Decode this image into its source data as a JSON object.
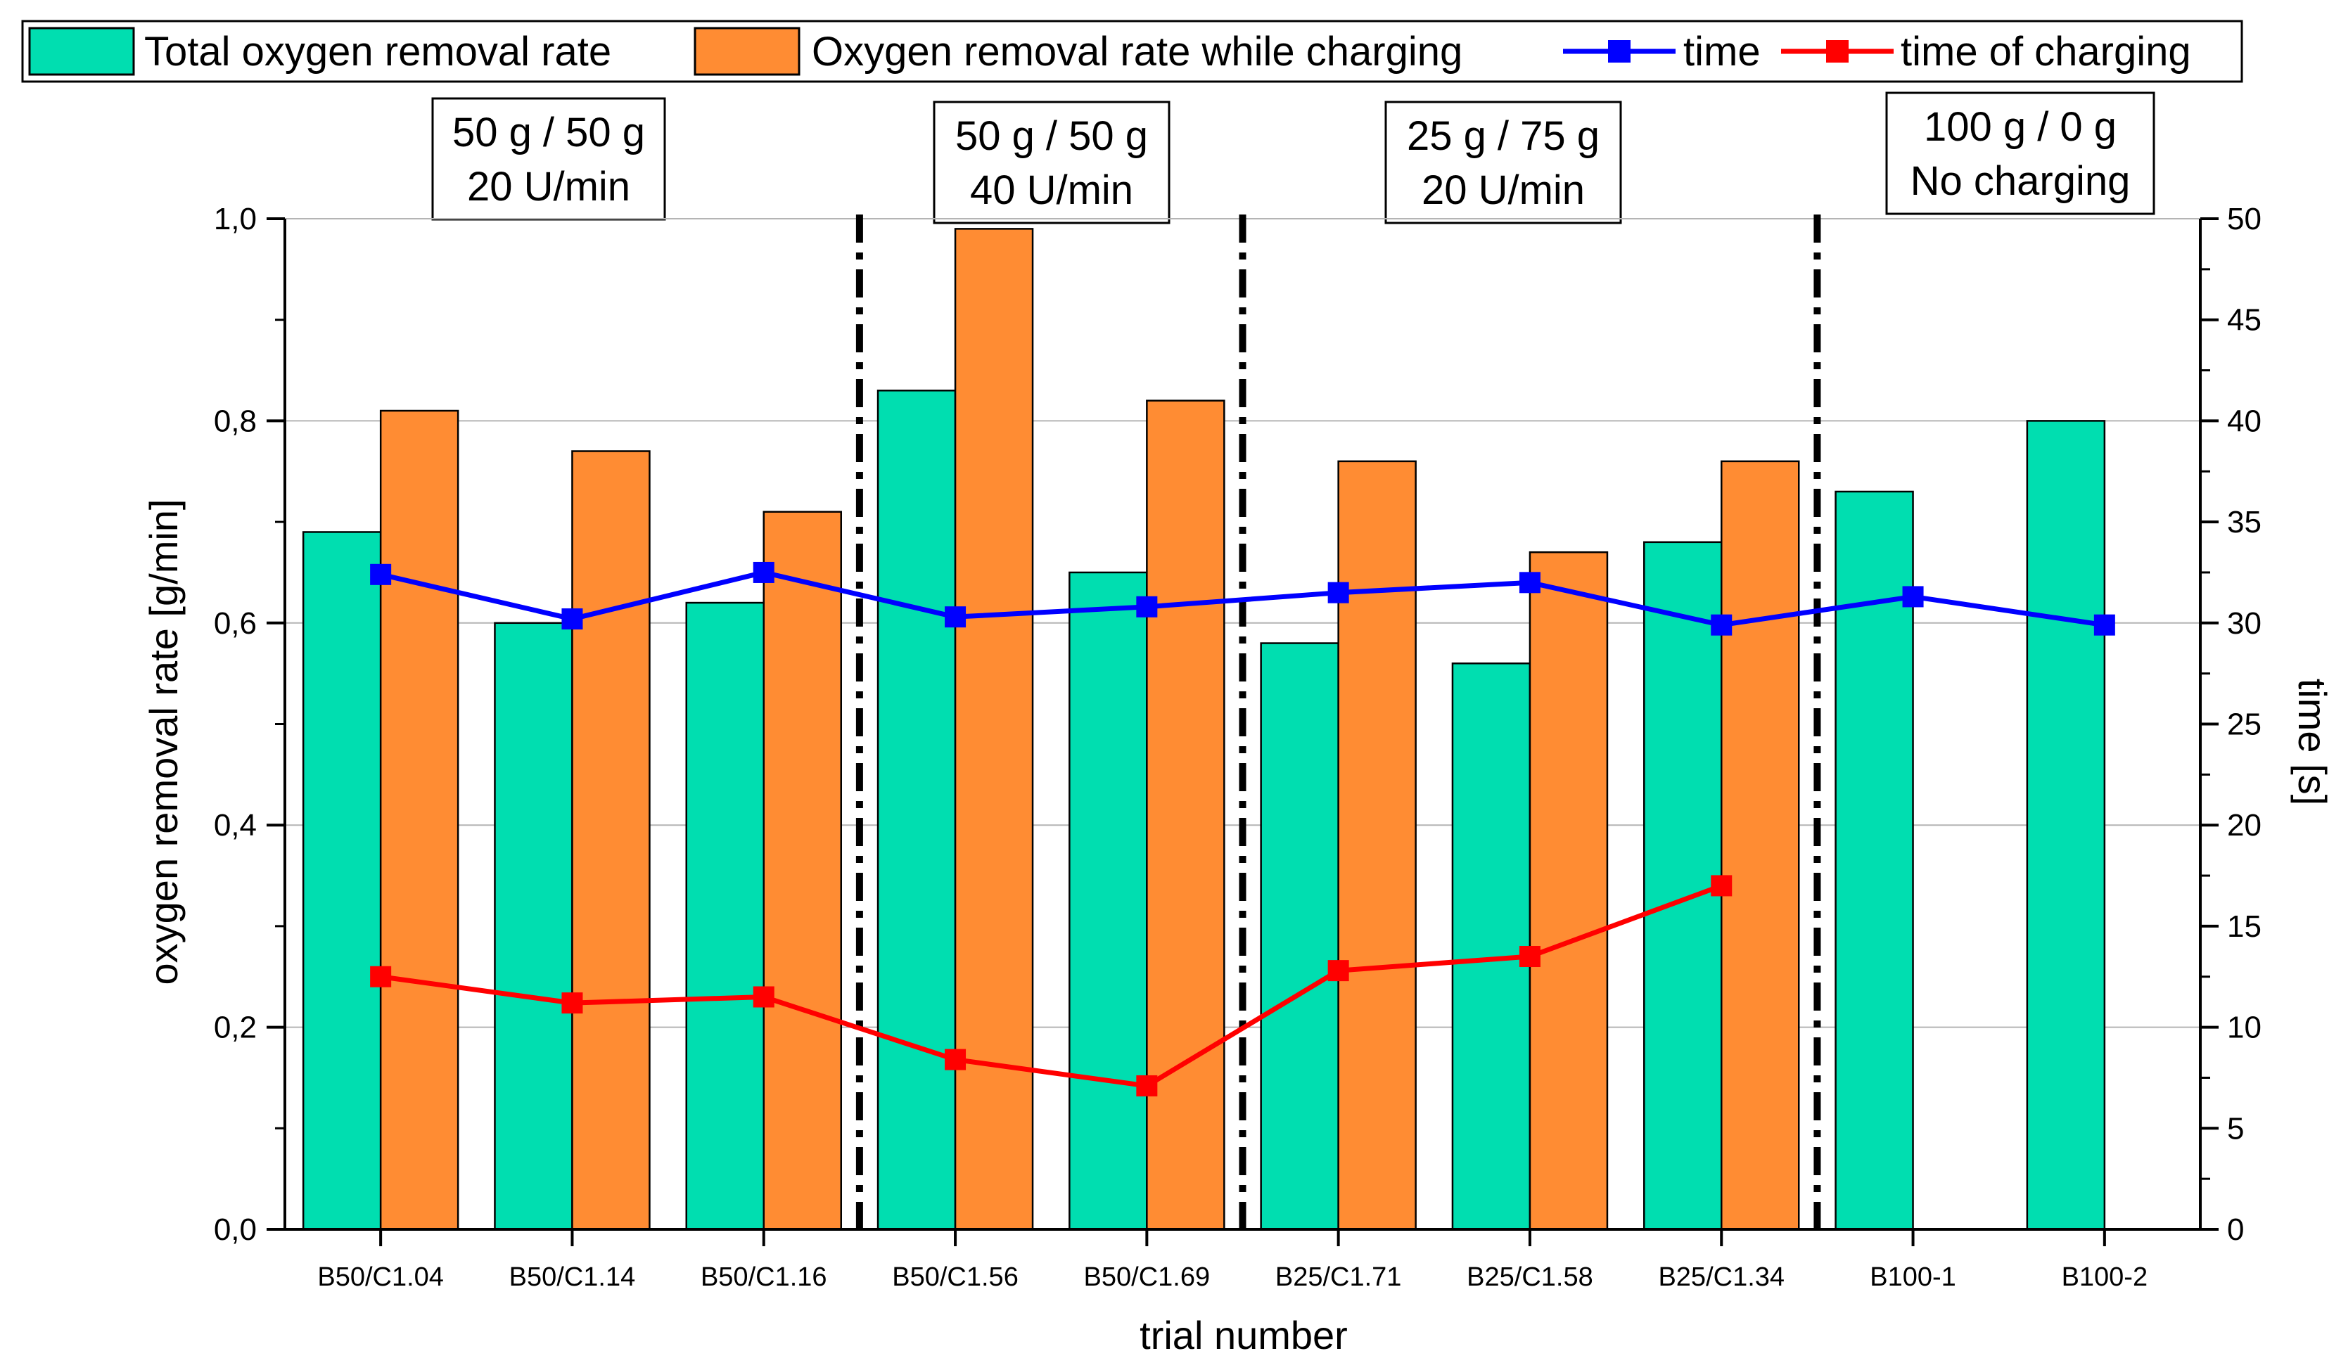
{
  "colors": {
    "total": "#00DEB0",
    "charging": "#FF8C33",
    "time": "#0000FF",
    "time_charging": "#FF0000",
    "grid": "#B4B4B4"
  },
  "chart_data": {
    "type": "bar",
    "xlabel": "trial number",
    "ylabel": "oxygen removal rate [g/min]",
    "y2label": "time [s]",
    "ylim": [
      0,
      1.0
    ],
    "y2lim": [
      0,
      50
    ],
    "yticks": [
      "0,0",
      "0,2",
      "0,4",
      "0,6",
      "0,8",
      "1,0"
    ],
    "y2ticks": [
      "0",
      "5",
      "10",
      "15",
      "20",
      "25",
      "30",
      "35",
      "40",
      "45",
      "50"
    ],
    "grid": true,
    "legend_position": "top",
    "categories": [
      "B50/C1.04",
      "B50/C1.14",
      "B50/C1.16",
      "B50/C1.56",
      "B50/C1.69",
      "B25/C1.71",
      "B25/C1.58",
      "B25/C1.34",
      "B100-1",
      "B100-2"
    ],
    "series": [
      {
        "name": "Total oxygen removal rate",
        "type": "bar",
        "axis": "left",
        "values": [
          0.69,
          0.6,
          0.62,
          0.83,
          0.65,
          0.58,
          0.56,
          0.68,
          0.73,
          0.8
        ]
      },
      {
        "name": "Oxygen removal rate while charging",
        "type": "bar",
        "axis": "left",
        "values": [
          0.81,
          0.77,
          0.71,
          0.99,
          0.82,
          0.76,
          0.67,
          0.76,
          null,
          null
        ]
      },
      {
        "name": "time",
        "type": "line",
        "axis": "right",
        "values": [
          32.4,
          30.2,
          32.5,
          30.3,
          30.8,
          31.5,
          32.0,
          29.9,
          31.3,
          29.9
        ]
      },
      {
        "name": "time of charging",
        "type": "line",
        "axis": "right",
        "values": [
          12.5,
          11.2,
          11.5,
          8.4,
          7.1,
          12.8,
          13.5,
          17.0,
          null,
          null
        ]
      }
    ],
    "groups": [
      {
        "line1": "50 g / 50 g",
        "line2": "20 U/min"
      },
      {
        "line1": "50 g / 50 g",
        "line2": "40 U/min"
      },
      {
        "line1": "25 g / 75 g",
        "line2": "20 U/min"
      },
      {
        "line1": "100 g / 0 g",
        "line2": "No charging"
      }
    ]
  }
}
